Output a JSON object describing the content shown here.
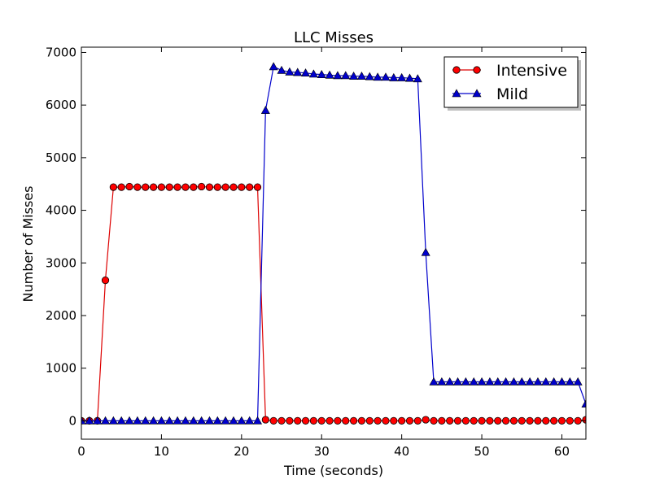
{
  "chart_data": {
    "type": "line",
    "title": "LLC Misses",
    "xlabel": "Time (seconds)",
    "ylabel": "Number of Misses",
    "xlim": [
      0,
      63
    ],
    "ylim": [
      -350,
      7100
    ],
    "xticks": [
      0,
      10,
      20,
      30,
      40,
      50,
      60
    ],
    "yticks": [
      0,
      1000,
      2000,
      3000,
      4000,
      5000,
      6000,
      7000
    ],
    "grid": false,
    "legend_position": "top-right",
    "x": [
      0,
      1,
      2,
      3,
      4,
      5,
      6,
      7,
      8,
      9,
      10,
      11,
      12,
      13,
      14,
      15,
      16,
      17,
      18,
      19,
      20,
      21,
      22,
      23,
      24,
      25,
      26,
      27,
      28,
      29,
      30,
      31,
      32,
      33,
      34,
      35,
      36,
      37,
      38,
      39,
      40,
      41,
      42,
      43,
      44,
      45,
      46,
      47,
      48,
      49,
      50,
      51,
      52,
      53,
      54,
      55,
      56,
      57,
      58,
      59,
      60,
      61,
      62,
      63
    ],
    "series": [
      {
        "name": "Intensive",
        "color": "#ff0000",
        "line_color": "#dd0000",
        "marker": "circle",
        "values": [
          0,
          0,
          0,
          2670,
          4440,
          4440,
          4450,
          4440,
          4440,
          4440,
          4440,
          4440,
          4440,
          4440,
          4440,
          4450,
          4440,
          4440,
          4440,
          4440,
          4440,
          4440,
          4440,
          20,
          0,
          0,
          0,
          0,
          0,
          0,
          0,
          0,
          0,
          0,
          0,
          0,
          0,
          0,
          0,
          0,
          0,
          0,
          0,
          20,
          0,
          0,
          0,
          0,
          0,
          0,
          0,
          0,
          0,
          0,
          0,
          0,
          0,
          0,
          0,
          0,
          0,
          0,
          0,
          20
        ]
      },
      {
        "name": "Mild",
        "color": "#0000cc",
        "line_color": "#0000cc",
        "marker": "triangle",
        "values": [
          0,
          0,
          0,
          0,
          0,
          0,
          0,
          0,
          0,
          0,
          0,
          0,
          0,
          0,
          0,
          0,
          0,
          0,
          0,
          0,
          0,
          0,
          0,
          5900,
          6730,
          6660,
          6630,
          6620,
          6610,
          6590,
          6580,
          6570,
          6560,
          6560,
          6550,
          6550,
          6540,
          6530,
          6530,
          6520,
          6520,
          6510,
          6500,
          3200,
          740,
          740,
          740,
          740,
          740,
          740,
          740,
          740,
          740,
          740,
          740,
          740,
          740,
          740,
          740,
          740,
          740,
          740,
          740,
          320
        ]
      }
    ]
  }
}
